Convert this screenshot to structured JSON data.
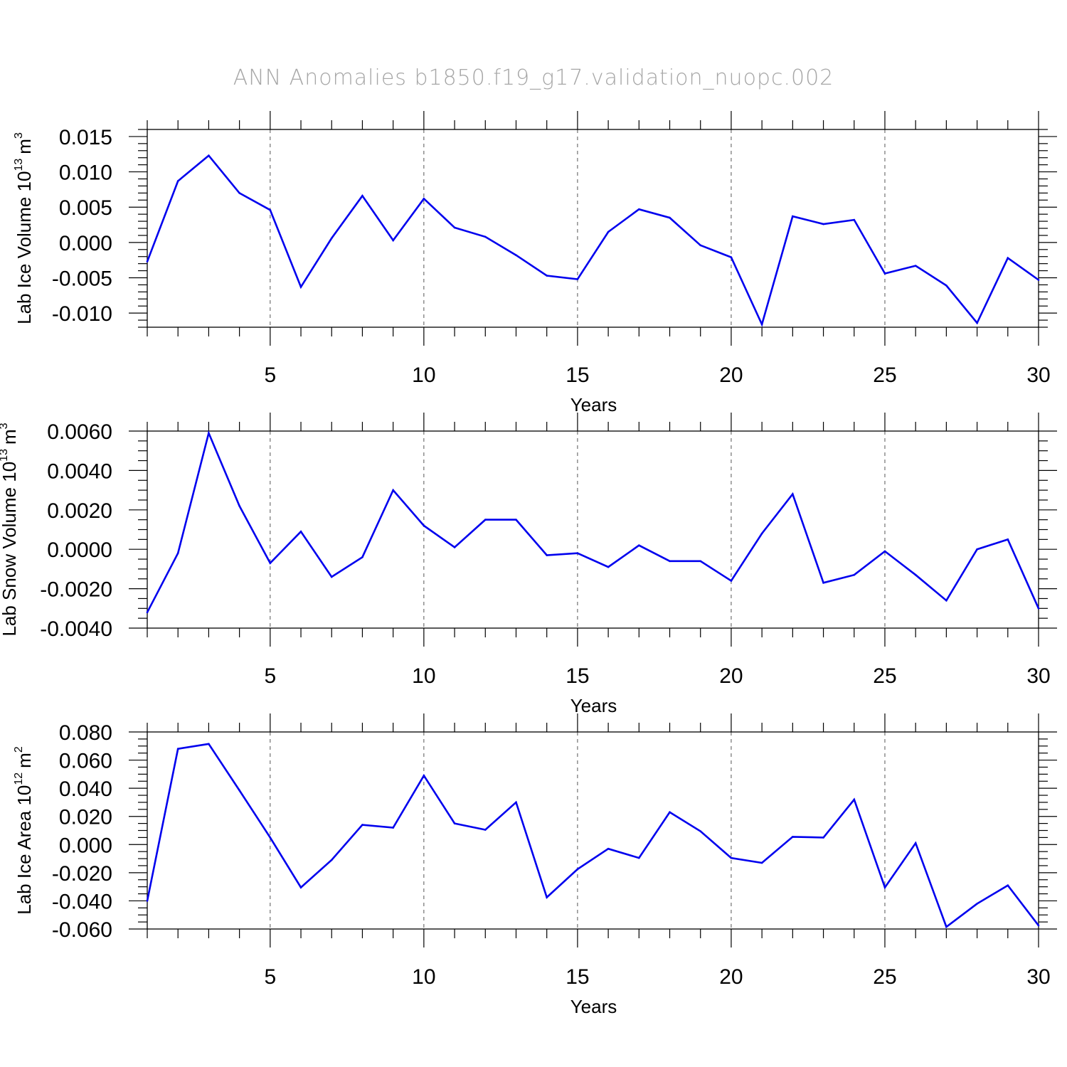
{
  "figure_title": "ANN Anomalies b1850.f19_g17.validation_nuopc.002",
  "chart_data": [
    {
      "type": "line",
      "title": "",
      "xlabel": "Years",
      "ylabel": "Lab Ice Volume 10",
      "ylabel_exp": "13",
      "ylabel_unit": "m",
      "ylabel_unit_exp": "3",
      "xlim": [
        1,
        30
      ],
      "ylim": [
        -0.012,
        0.016
      ],
      "xticks": [
        5,
        10,
        15,
        20,
        25,
        30
      ],
      "xtick_labels": [
        "5",
        "10",
        "15",
        "20",
        "25",
        "30"
      ],
      "yticks": [
        0.015,
        0.01,
        0.005,
        0.0,
        -0.005,
        -0.01
      ],
      "ytick_labels": [
        "0.015",
        "0.010",
        "0.005",
        "0.000",
        "-0.005",
        "-0.010"
      ],
      "ymin_step": 0.001,
      "grid_x": [
        5,
        10,
        15,
        20,
        25
      ],
      "color": "#0000ee",
      "x": [
        1,
        2,
        3,
        4,
        5,
        6,
        7,
        8,
        9,
        10,
        11,
        12,
        13,
        14,
        15,
        16,
        17,
        18,
        19,
        20,
        21,
        22,
        23,
        24,
        25,
        26,
        27,
        28,
        29,
        30
      ],
      "values": [
        -0.0027,
        0.0087,
        0.0123,
        0.007,
        0.0046,
        -0.0063,
        0.0006,
        0.0066,
        0.0003,
        0.0062,
        0.0021,
        0.0008,
        -0.0018,
        -0.0047,
        -0.0052,
        0.0015,
        0.0047,
        0.0035,
        -0.0004,
        -0.0021,
        -0.0116,
        0.0037,
        0.0026,
        0.0032,
        -0.0044,
        -0.0033,
        -0.0061,
        -0.0114,
        -0.0022,
        -0.0053
      ]
    },
    {
      "type": "line",
      "title": "",
      "xlabel": "Years",
      "ylabel": "Lab Snow Volume 10",
      "ylabel_exp": "13",
      "ylabel_unit": "m",
      "ylabel_unit_exp": "3",
      "xlim": [
        1,
        30
      ],
      "ylim": [
        -0.004,
        0.006
      ],
      "xticks": [
        5,
        10,
        15,
        20,
        25,
        30
      ],
      "xtick_labels": [
        "5",
        "10",
        "15",
        "20",
        "25",
        "30"
      ],
      "yticks": [
        0.006,
        0.004,
        0.002,
        0.0,
        -0.002,
        -0.004
      ],
      "ytick_labels": [
        "0.0060",
        "0.0040",
        "0.0020",
        "0.0000",
        "-0.0020",
        "-0.0040"
      ],
      "ymin_step": 0.0005,
      "grid_x": [
        5,
        10,
        15,
        20,
        25
      ],
      "color": "#0000ee",
      "x": [
        1,
        2,
        3,
        4,
        5,
        6,
        7,
        8,
        9,
        10,
        11,
        12,
        13,
        14,
        15,
        16,
        17,
        18,
        19,
        20,
        21,
        22,
        23,
        24,
        25,
        26,
        27,
        28,
        29,
        30
      ],
      "values": [
        -0.0032,
        -0.0002,
        0.0059,
        0.0022,
        -0.0007,
        0.0009,
        -0.0014,
        -0.0004,
        0.003,
        0.0012,
        0.0001,
        0.0015,
        0.0015,
        -0.0003,
        -0.0002,
        -0.0009,
        0.0002,
        -0.0006,
        -0.0006,
        -0.0016,
        0.0008,
        0.0028,
        -0.0017,
        -0.0013,
        -0.0001,
        -0.0013,
        -0.0026,
        0.0,
        0.0005,
        -0.003
      ]
    },
    {
      "type": "line",
      "title": "",
      "xlabel": "Years",
      "ylabel": "Lab Ice Area 10",
      "ylabel_exp": "12",
      "ylabel_unit": "m",
      "ylabel_unit_exp": "2",
      "xlim": [
        1,
        30
      ],
      "ylim": [
        -0.06,
        0.08
      ],
      "xticks": [
        5,
        10,
        15,
        20,
        25,
        30
      ],
      "xtick_labels": [
        "5",
        "10",
        "15",
        "20",
        "25",
        "30"
      ],
      "yticks": [
        0.08,
        0.06,
        0.04,
        0.02,
        0.0,
        -0.02,
        -0.04,
        -0.06
      ],
      "ytick_labels": [
        "0.080",
        "0.060",
        "0.040",
        "0.020",
        "0.000",
        "-0.020",
        "-0.040",
        "-0.060"
      ],
      "ymin_step": 0.005,
      "grid_x": [
        5,
        10,
        15,
        20,
        25
      ],
      "color": "#0000ee",
      "x": [
        1,
        2,
        3,
        4,
        5,
        6,
        7,
        8,
        9,
        10,
        11,
        12,
        13,
        14,
        15,
        16,
        17,
        18,
        19,
        20,
        21,
        22,
        23,
        24,
        25,
        26,
        27,
        28,
        29,
        30
      ],
      "values": [
        -0.04,
        0.068,
        0.0715,
        0.0385,
        0.005,
        -0.0305,
        -0.011,
        0.014,
        0.012,
        0.049,
        0.015,
        0.0105,
        0.03,
        -0.0375,
        -0.0175,
        -0.003,
        -0.0095,
        0.023,
        0.0095,
        -0.0095,
        -0.013,
        0.0055,
        0.005,
        0.032,
        -0.0305,
        0.001,
        -0.0585,
        -0.042,
        -0.029,
        -0.0575
      ]
    }
  ]
}
